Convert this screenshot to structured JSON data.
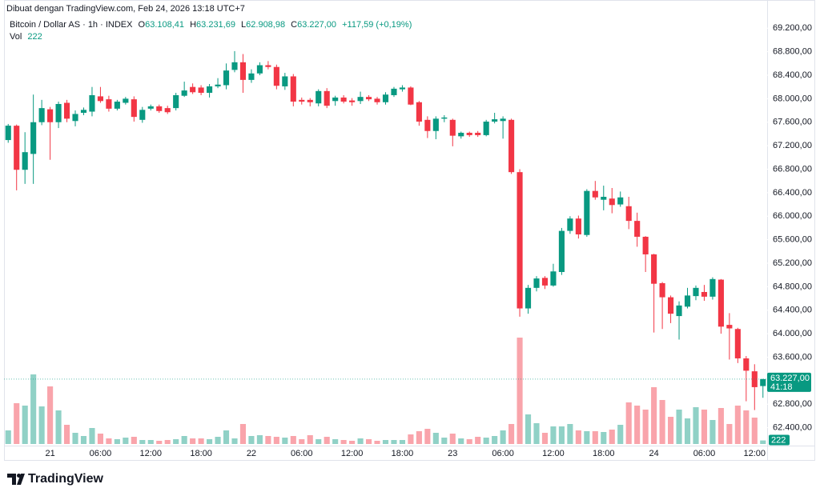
{
  "chart_data": {
    "type": "candlestick",
    "attribution": "Dibuat dengan TradingView.com, Feb 24, 2026 13:18 UTC+7",
    "brand": "TradingView",
    "legend": {
      "symbol": "Bitcoin / Dollar AS · 1h · INDEX",
      "o": "O",
      "open": "63.108,41",
      "h": "H",
      "high": "63.231,69",
      "l": "L",
      "low": "62.908,98",
      "c": "C",
      "close": "63.227,00",
      "change": "+117,59 (+0,19%)",
      "vol_name": "Vol",
      "vol": "222"
    },
    "last_price_label": "63.227,00",
    "countdown": "41:18",
    "up_color": "#089981",
    "down_color": "#f23645",
    "grid": false,
    "categories": [
      null,
      null,
      null,
      null,
      null,
      "21",
      null,
      null,
      null,
      null,
      null,
      "06:00",
      null,
      null,
      null,
      null,
      null,
      "12:00",
      null,
      null,
      null,
      null,
      null,
      "18:00",
      null,
      null,
      null,
      null,
      null,
      "22",
      null,
      null,
      null,
      null,
      null,
      "06:00",
      null,
      null,
      null,
      null,
      null,
      "12:00",
      null,
      null,
      null,
      null,
      null,
      "18:00",
      null,
      null,
      null,
      null,
      null,
      "23",
      null,
      null,
      null,
      null,
      null,
      "06:00",
      null,
      null,
      null,
      null,
      null,
      "12:00",
      null,
      null,
      null,
      null,
      null,
      "18:00",
      null,
      null,
      null,
      null,
      null,
      "24",
      null,
      null,
      null,
      null,
      null,
      "06:00",
      null,
      null,
      null,
      null,
      null,
      "12:00",
      null
    ],
    "open": [
      67296,
      67540,
      66790,
      67060,
      67600,
      67820,
      67600,
      67930,
      67620,
      67760,
      67780,
      68040,
      67990,
      67830,
      67930,
      67990,
      67640,
      67830,
      67870,
      67840,
      67840,
      68050,
      68200,
      68190,
      68100,
      68210,
      68230,
      68490,
      68620,
      68320,
      68430,
      68570,
      68540,
      68210,
      68380,
      67980,
      67980,
      67920,
      68130,
      67960,
      68020,
      67970,
      67960,
      68030,
      68000,
      67940,
      68060,
      68160,
      68190,
      67940,
      67640,
      67450,
      67660,
      67640,
      67360,
      67420,
      67420,
      67380,
      67610,
      67620,
      67640,
      66750,
      64430,
      64780,
      64950,
      64820,
      65050,
      65750,
      65960,
      65680,
      66430,
      66280,
      66300,
      66200,
      66170,
      65920,
      65650,
      65350,
      64860,
      64620,
      64300,
      64460,
      64640,
      64710,
      64630,
      64920,
      64150,
      64080,
      63580,
      63360,
      63108.41
    ],
    "high": [
      67570,
      67560,
      67430,
      68070,
      67980,
      67860,
      67950,
      67980,
      67800,
      67850,
      68200,
      68200,
      68050,
      67980,
      68030,
      68040,
      67860,
      67900,
      67900,
      67880,
      68100,
      68290,
      68260,
      68230,
      68250,
      68350,
      68600,
      68810,
      68760,
      68500,
      68620,
      68640,
      68580,
      68440,
      68420,
      68020,
      68010,
      68160,
      68180,
      68050,
      68060,
      68010,
      68120,
      68060,
      68030,
      68110,
      68200,
      68230,
      68210,
      67960,
      67700,
      67700,
      67720,
      67660,
      67440,
      67440,
      67450,
      67640,
      67760,
      67700,
      67660,
      66800,
      64830,
      64980,
      64980,
      65190,
      65800,
      66000,
      66010,
      66460,
      66600,
      66520,
      66480,
      66420,
      66330,
      66060,
      65660,
      65360,
      64880,
      64650,
      64550,
      64780,
      64820,
      64830,
      64960,
      64930,
      64350,
      64100,
      63620,
      63480,
      63231.69
    ],
    "low": [
      67250,
      66440,
      66550,
      66550,
      67550,
      66960,
      67500,
      67600,
      67530,
      67720,
      67700,
      67930,
      67780,
      67800,
      67900,
      67610,
      67590,
      67800,
      67760,
      67740,
      67800,
      68030,
      68080,
      68060,
      68020,
      68180,
      68160,
      68450,
      68100,
      68270,
      68400,
      68500,
      68160,
      68150,
      67870,
      67900,
      67870,
      67870,
      67840,
      67880,
      67920,
      67880,
      67910,
      67960,
      67900,
      67900,
      68030,
      68120,
      67890,
      67540,
      67330,
      67310,
      67600,
      67190,
      67320,
      67350,
      67350,
      67360,
      67580,
      67320,
      66720,
      64290,
      64340,
      64720,
      64760,
      64800,
      65000,
      65700,
      65620,
      65650,
      66280,
      66100,
      66050,
      66160,
      65780,
      65480,
      65050,
      64020,
      64080,
      64180,
      63900,
      64430,
      64570,
      64560,
      64580,
      64000,
      63560,
      63500,
      62850,
      62700,
      62908.98
    ],
    "close": [
      67541,
      66790,
      67090,
      67600,
      67840,
      67600,
      67910,
      67660,
      67740,
      67810,
      68060,
      67960,
      67830,
      67950,
      68000,
      67690,
      67810,
      67870,
      67790,
      67770,
      68060,
      68140,
      68110,
      68100,
      68210,
      68240,
      68480,
      68620,
      68320,
      68430,
      68570,
      68540,
      68220,
      68380,
      67950,
      67950,
      67940,
      68130,
      67880,
      68020,
      67950,
      67940,
      68030,
      67990,
      67940,
      68070,
      68170,
      68190,
      67900,
      67610,
      67450,
      67660,
      67680,
      67370,
      67420,
      67380,
      67380,
      67610,
      67650,
      67660,
      66750,
      64430,
      64780,
      64940,
      64820,
      65060,
      65750,
      65960,
      65690,
      66430,
      66320,
      66330,
      66190,
      66320,
      65920,
      65650,
      65350,
      64850,
      64620,
      64340,
      64480,
      64650,
      64780,
      64630,
      64930,
      64120,
      64090,
      63580,
      63370,
      63090,
      63227
    ],
    "volume": [
      850,
      2550,
      2400,
      4350,
      2350,
      3600,
      2100,
      1200,
      700,
      500,
      1000,
      650,
      350,
      300,
      400,
      450,
      250,
      250,
      200,
      250,
      300,
      500,
      350,
      350,
      300,
      450,
      850,
      350,
      1250,
      500,
      550,
      500,
      450,
      400,
      500,
      300,
      550,
      300,
      450,
      300,
      250,
      200,
      350,
      300,
      200,
      250,
      250,
      250,
      600,
      800,
      950,
      700,
      400,
      650,
      350,
      300,
      450,
      400,
      500,
      850,
      1250,
      6650,
      1850,
      1300,
      700,
      1100,
      1100,
      1250,
      850,
      800,
      800,
      750,
      900,
      1200,
      2600,
      2400,
      2150,
      3550,
      2750,
      1700,
      2150,
      1600,
      2300,
      2150,
      1500,
      2250,
      1250,
      2400,
      2100,
      1650,
      222
    ],
    "volume_lim": [
      0,
      7500
    ],
    "ylim": [
      61850,
      69680
    ],
    "yticks": [
      {
        "value": 62400,
        "label": "62.400,00"
      },
      {
        "value": 62800,
        "label": "62.800,00"
      },
      {
        "value": 63600,
        "label": "63.600,00"
      },
      {
        "value": 64000,
        "label": "64.000,00"
      },
      {
        "value": 64400,
        "label": "64.400,00"
      },
      {
        "value": 64800,
        "label": "64.800,00"
      },
      {
        "value": 65200,
        "label": "65.200,00"
      },
      {
        "value": 65600,
        "label": "65.600,00"
      },
      {
        "value": 66000,
        "label": "66.000,00"
      },
      {
        "value": 66400,
        "label": "66.400,00"
      },
      {
        "value": 66800,
        "label": "66.800,00"
      },
      {
        "value": 67200,
        "label": "67.200,00"
      },
      {
        "value": 67600,
        "label": "67.600,00"
      },
      {
        "value": 68000,
        "label": "68.000,00"
      },
      {
        "value": 68400,
        "label": "68.400,00"
      },
      {
        "value": 68800,
        "label": "68.800,00"
      },
      {
        "value": 69200,
        "label": "69.200,00"
      }
    ]
  }
}
